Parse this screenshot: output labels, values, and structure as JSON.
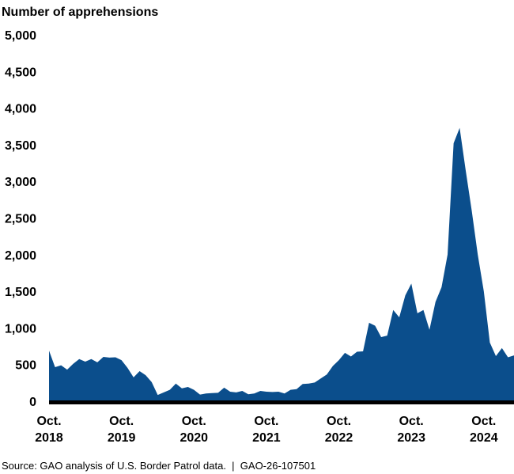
{
  "chart_data": {
    "type": "area",
    "title": "",
    "ylabel": "Number of apprehensions",
    "xlabel": "",
    "ylim": [
      0,
      5000
    ],
    "yticks": [
      0,
      500,
      1000,
      1500,
      2000,
      2500,
      3000,
      3500,
      4000,
      4500,
      5000
    ],
    "ytick_labels": [
      "0",
      "500",
      "1,000",
      "1,500",
      "2,000",
      "2,500",
      "3,000",
      "3,500",
      "4,000",
      "4,500",
      "5,000"
    ],
    "x_start": "2018-10",
    "x_end": "2025-03",
    "x_interval": "monthly",
    "xtick_labels": [
      {
        "month": "2018-10",
        "line1": "Oct.",
        "line2": "2018"
      },
      {
        "month": "2019-10",
        "line1": "Oct.",
        "line2": "2019"
      },
      {
        "month": "2020-10",
        "line1": "Oct.",
        "line2": "2020"
      },
      {
        "month": "2021-10",
        "line1": "Oct.",
        "line2": "2021"
      },
      {
        "month": "2022-10",
        "line1": "Oct.",
        "line2": "2022"
      },
      {
        "month": "2023-10",
        "line1": "Oct.",
        "line2": "2023"
      },
      {
        "month": "2024-10",
        "line1": "Oct.",
        "line2": "2024"
      }
    ],
    "grid": false,
    "fill_color": "#0B4E8C",
    "values": [
      690,
      465,
      490,
      430,
      510,
      575,
      540,
      575,
      530,
      605,
      595,
      600,
      560,
      455,
      325,
      410,
      355,
      260,
      85,
      120,
      155,
      240,
      175,
      195,
      155,
      90,
      105,
      110,
      115,
      185,
      130,
      120,
      140,
      95,
      105,
      140,
      130,
      125,
      130,
      105,
      155,
      165,
      235,
      240,
      255,
      310,
      365,
      480,
      560,
      660,
      610,
      675,
      680,
      1070,
      1030,
      875,
      895,
      1245,
      1145,
      1445,
      1605,
      1200,
      1245,
      975,
      1355,
      1555,
      2000,
      3520,
      3730,
      3150,
      2600,
      2000,
      1500,
      800,
      615,
      725,
      600,
      625
    ]
  },
  "source": "Source: GAO analysis of U.S. Border Patrol data.  |  GAO-26-107501"
}
